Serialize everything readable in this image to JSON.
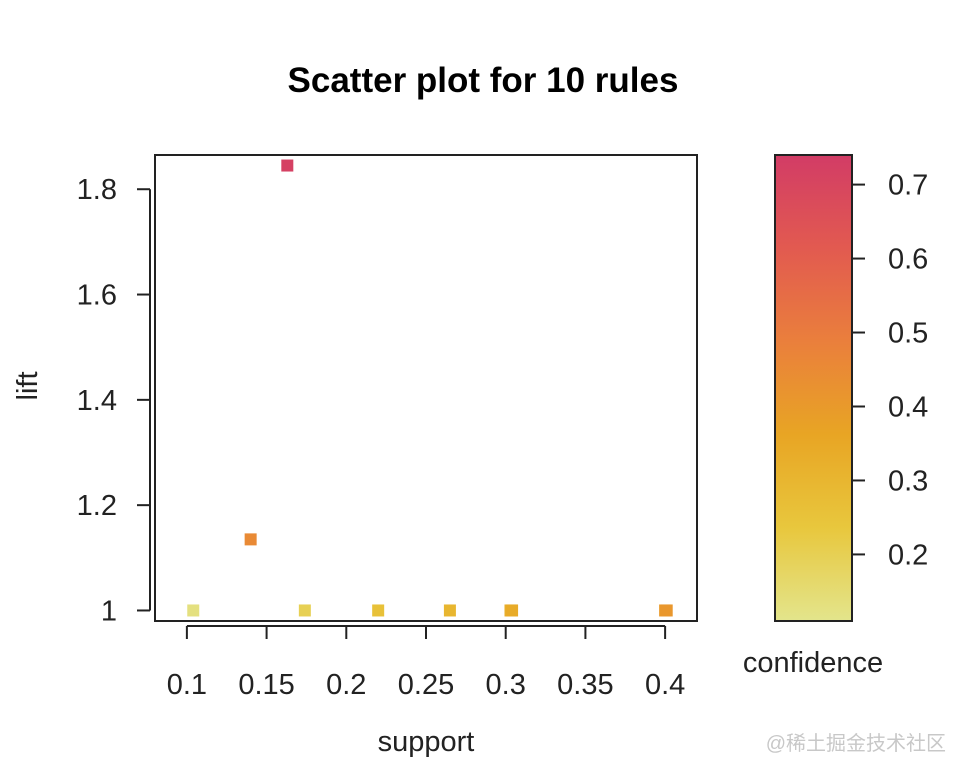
{
  "chart_data": {
    "type": "scatter",
    "title": "Scatter plot for 10 rules",
    "xlabel": "support",
    "ylabel": "lift",
    "xlim": [
      0.08,
      0.42
    ],
    "ylim": [
      0.98,
      1.865
    ],
    "x_ticks": [
      "0.1",
      "0.15",
      "0.2",
      "0.25",
      "0.3",
      "0.35",
      "0.4"
    ],
    "x_tick_values": [
      0.1,
      0.15,
      0.2,
      0.25,
      0.3,
      0.35,
      0.4
    ],
    "y_ticks": [
      "1",
      "1.2",
      "1.4",
      "1.6",
      "1.8"
    ],
    "y_tick_values": [
      1.0,
      1.2,
      1.4,
      1.6,
      1.8
    ],
    "points": [
      {
        "support": 0.163,
        "lift": 1.845,
        "confidence": 0.72
      },
      {
        "support": 0.14,
        "lift": 1.135,
        "confidence": 0.45
      },
      {
        "support": 0.104,
        "lift": 1.0,
        "confidence": 0.13
      },
      {
        "support": 0.174,
        "lift": 1.0,
        "confidence": 0.2
      },
      {
        "support": 0.22,
        "lift": 1.0,
        "confidence": 0.26
      },
      {
        "support": 0.265,
        "lift": 1.0,
        "confidence": 0.3
      },
      {
        "support": 0.303,
        "lift": 1.0,
        "confidence": 0.33
      },
      {
        "support": 0.304,
        "lift": 1.0,
        "confidence": 0.34
      },
      {
        "support": 0.4,
        "lift": 1.0,
        "confidence": 0.4
      },
      {
        "support": 0.401,
        "lift": 1.0,
        "confidence": 0.41
      }
    ],
    "colorbar": {
      "label": "confidence",
      "range": [
        0.11,
        0.74
      ],
      "ticks": [
        "0.2",
        "0.3",
        "0.4",
        "0.5",
        "0.6",
        "0.7"
      ],
      "tick_values": [
        0.2,
        0.3,
        0.4,
        0.5,
        0.6,
        0.7
      ],
      "colors": [
        "#e3e58c",
        "#e8c73d",
        "#e8a524",
        "#ea7f3c",
        "#e25a50",
        "#d23c66"
      ]
    },
    "grid": false
  },
  "watermark": "@稀土掘金技术社区"
}
